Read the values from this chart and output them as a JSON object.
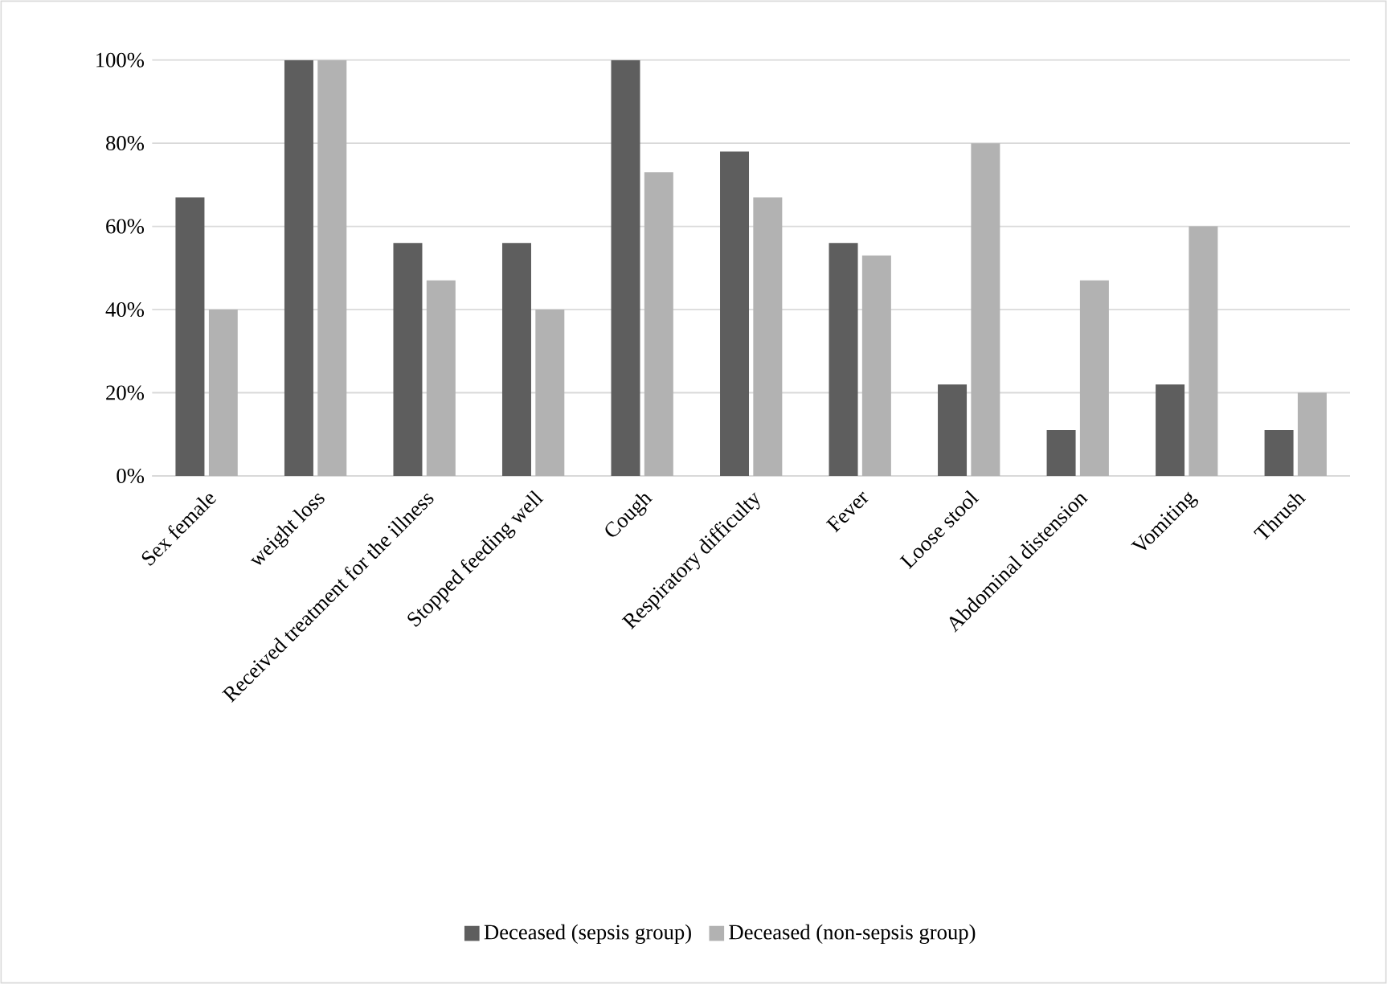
{
  "chart_data": {
    "type": "bar",
    "categories": [
      "Sex female",
      "weight loss",
      "Received treatment for the illness",
      "Stopped feeding well",
      "Cough",
      "Respiratory difficulty",
      "Fever",
      "Loose stool",
      "Abdominal distension",
      "Vomiting",
      "Thrush"
    ],
    "series": [
      {
        "name": "Deceased (sepsis group)",
        "color": "#5e5e5e",
        "values": [
          67,
          100,
          56,
          56,
          100,
          78,
          56,
          22,
          11,
          22,
          11
        ]
      },
      {
        "name": "Deceased (non-sepsis group)",
        "color": "#b2b2b2",
        "values": [
          40,
          100,
          47,
          40,
          73,
          67,
          53,
          80,
          47,
          60,
          20
        ]
      }
    ],
    "ylim": [
      0,
      100
    ],
    "yticks": [
      {
        "value": 0,
        "label": "0%"
      },
      {
        "value": 20,
        "label": "20%"
      },
      {
        "value": 40,
        "label": "40%"
      },
      {
        "value": 60,
        "label": "60%"
      },
      {
        "value": 80,
        "label": "80%"
      },
      {
        "value": 100,
        "label": "100%"
      }
    ],
    "grid": "y",
    "legend": "bottom"
  }
}
